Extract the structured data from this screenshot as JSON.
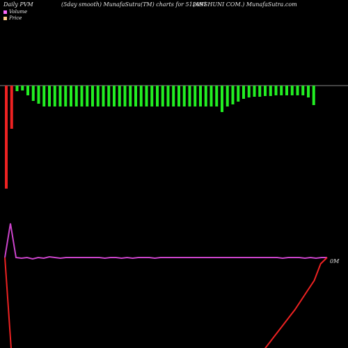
{
  "header": {
    "left": "Daily PVM",
    "middle": "(5day smooth) MunafaSutra(TM) charts for 512091",
    "right": "(ANSHUNI COM.) MunafaSutra.com"
  },
  "legend": {
    "volume_label": "Volume",
    "price_label": "Price",
    "volume_color": "#ff66ff",
    "price_color": "#ffcc88"
  },
  "colors": {
    "background": "#000000",
    "up_bar": "#22ee22",
    "down_bar": "#ee2222",
    "volume_line": "#cc44cc",
    "price_line": "#ee2222",
    "baseline": "#888888"
  },
  "chart_data": [
    {
      "type": "bar",
      "values": [
        -148,
        -62,
        -8,
        -7,
        -14,
        -22,
        -26,
        -30,
        -30,
        -30,
        -30,
        -30,
        -30,
        -30,
        -30,
        -30,
        -30,
        -30,
        -30,
        -30,
        -30,
        -30,
        -30,
        -30,
        -30,
        -30,
        -30,
        -30,
        -30,
        -30,
        -30,
        -30,
        -30,
        -30,
        -30,
        -30,
        -30,
        -30,
        -30,
        -30,
        -38,
        -30,
        -27,
        -23,
        -19,
        -17,
        -16,
        -16,
        -15,
        -15,
        -14,
        -14,
        -14,
        -14,
        -14,
        -14,
        -17,
        -28
      ],
      "colors": [
        "red",
        "red",
        "green",
        "green",
        "green",
        "green",
        "green",
        "green",
        "green",
        "green",
        "green",
        "green",
        "green",
        "green",
        "green",
        "green",
        "green",
        "green",
        "green",
        "green",
        "green",
        "green",
        "green",
        "green",
        "green",
        "green",
        "green",
        "green",
        "green",
        "green",
        "green",
        "green",
        "green",
        "green",
        "green",
        "green",
        "green",
        "green",
        "green",
        "green",
        "green",
        "green",
        "green",
        "green",
        "green",
        "green",
        "green",
        "green",
        "green",
        "green",
        "green",
        "green",
        "green",
        "green",
        "green",
        "green",
        "green",
        "green"
      ],
      "grid": false
    },
    {
      "type": "line",
      "series": [
        {
          "values": [
            5,
            54,
            5,
            4,
            5,
            3,
            5,
            4,
            6,
            5,
            4,
            5,
            5,
            5,
            5,
            5,
            5,
            5,
            4,
            5,
            5,
            4,
            5,
            4,
            5,
            5,
            5,
            4,
            5,
            5,
            5,
            5,
            5,
            5,
            5,
            5,
            5,
            5,
            5,
            5,
            5,
            5,
            5,
            5,
            5,
            5,
            5,
            5,
            5,
            5,
            4,
            5,
            5,
            5,
            4,
            5,
            4,
            5,
            5
          ]
        },
        {
          "values": [
            5,
            -130,
            -130,
            -130,
            -130,
            -130,
            -130,
            -130,
            -130,
            -130,
            -130,
            -130,
            -130,
            -130,
            -130,
            -130,
            -130,
            -130,
            -130,
            -130,
            -130,
            -130,
            -130,
            -130,
            -130,
            -130,
            -130,
            -130,
            -130,
            -130,
            -130,
            -130,
            -130,
            -130,
            -130,
            -130,
            -130,
            -130,
            -130,
            -130,
            -130,
            -118,
            -106,
            -94,
            -82,
            -70,
            -56,
            -42,
            -28,
            -4,
            5
          ]
        }
      ],
      "end_label": "0M"
    }
  ]
}
